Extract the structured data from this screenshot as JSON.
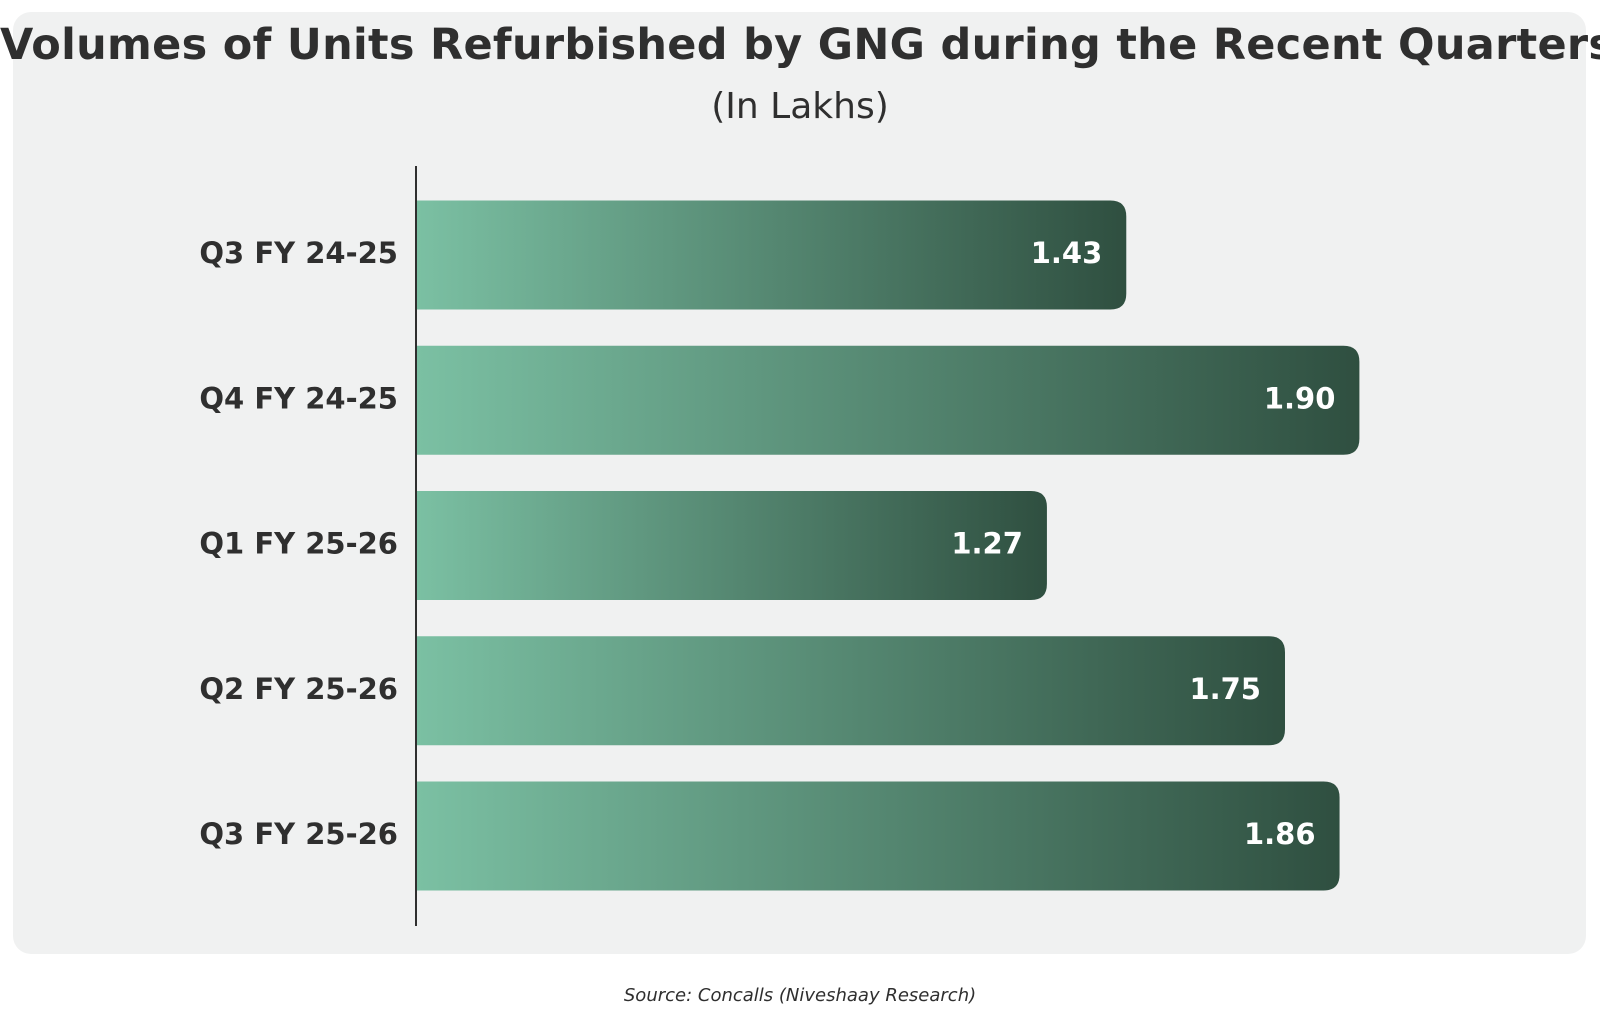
{
  "chart_data": {
    "type": "bar",
    "orientation": "horizontal",
    "title": "Volumes of Units Refurbished by GNG during the Recent Quarters",
    "subtitle": "(In Lakhs)",
    "categories": [
      "Q3 FY 24-25",
      "Q4 FY 24-25",
      "Q1 FY 25-26",
      "Q2 FY 25-26",
      "Q3 FY 25-26"
    ],
    "values": [
      1.43,
      1.9,
      1.27,
      1.75,
      1.86
    ],
    "value_labels": [
      "1.43",
      "1.90",
      "1.27",
      "1.75",
      "1.86"
    ],
    "xlabel": "",
    "ylabel": "",
    "xlim": [
      0,
      2.0
    ],
    "grid": false,
    "legend": "none",
    "colors": {
      "bar_light": "#7bc0a3",
      "bar_dark": "#2f4f40"
    }
  },
  "source": "Source: Concalls (Niveshaay Research)"
}
